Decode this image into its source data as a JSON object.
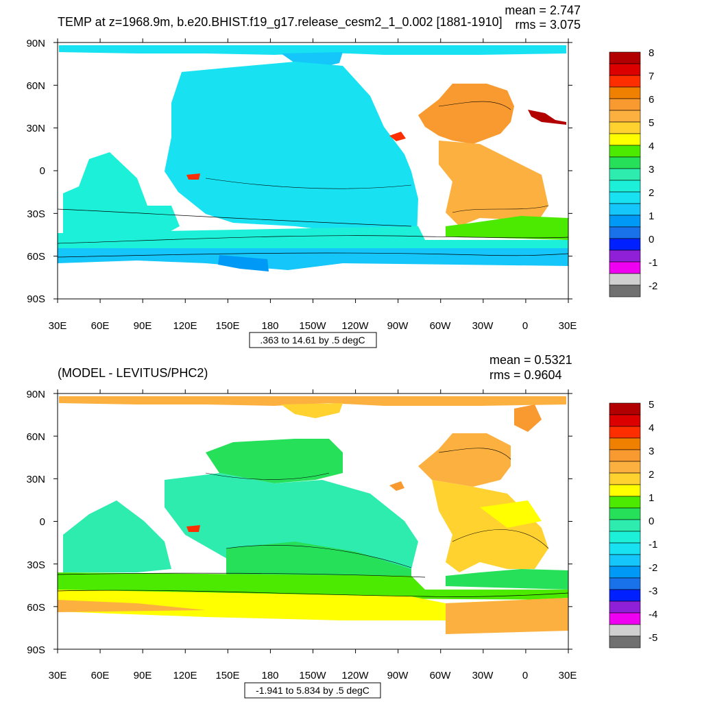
{
  "panels": [
    {
      "title": "TEMP at z=1968.9m, b.e20.BHIST.f19_g17.release_cesm2_1_0.002 [1881-1910]",
      "mean_label": "mean = 2.747",
      "rms_label": "rms = 3.075",
      "info_box": ".363 to 14.61 by .5 degC",
      "lat_labels": [
        "90N",
        "60N",
        "30N",
        "0",
        "30S",
        "60S",
        "90S"
      ],
      "lon_labels": [
        "30E",
        "60E",
        "90E",
        "120E",
        "150E",
        "180",
        "150W",
        "120W",
        "90W",
        "60W",
        "30W",
        "0",
        "30E"
      ],
      "colorbar_labels": [
        "8",
        "7",
        "6",
        "5",
        "4",
        "3",
        "2",
        "1",
        "0",
        "-1",
        "-2"
      ],
      "colorbar_colors": [
        "#B20000",
        "#DC0000",
        "#FF2E00",
        "#F08000",
        "#F89A30",
        "#FBB040",
        "#FFD230",
        "#FFFF00",
        "#4CEA00",
        "#26E05A",
        "#2EEBAE",
        "#1DF0D8",
        "#18E2F2",
        "#14C6FA",
        "#009AF6",
        "#1A72EB",
        "#0020FF",
        "#9020D8",
        "#F000F0",
        "#D0D0D0",
        "#707070"
      ]
    },
    {
      "title": "(MODEL - LEVITUS/PHC2)",
      "mean_label": "mean = 0.5321",
      "rms_label": "rms = 0.9604",
      "info_box": "-1.941 to 5.834 by .5 degC",
      "lat_labels": [
        "90N",
        "60N",
        "30N",
        "0",
        "30S",
        "60S",
        "90S"
      ],
      "lon_labels": [
        "30E",
        "60E",
        "90E",
        "120E",
        "150E",
        "180",
        "150W",
        "120W",
        "90W",
        "60W",
        "30W",
        "0",
        "30E"
      ],
      "colorbar_labels": [
        "5",
        "4",
        "3",
        "2",
        "1",
        "0",
        "-1",
        "-2",
        "-3",
        "-4",
        "-5"
      ],
      "colorbar_colors": [
        "#B20000",
        "#DC0000",
        "#FF2E00",
        "#F08000",
        "#F89A30",
        "#FBB040",
        "#FFD230",
        "#FFFF00",
        "#4CEA00",
        "#26E05A",
        "#2EEBAE",
        "#1DF0D8",
        "#18E2F2",
        "#14C6FA",
        "#009AF6",
        "#1A72EB",
        "#0020FF",
        "#9020D8",
        "#F000F0",
        "#D0D0D0",
        "#707070"
      ]
    }
  ]
}
